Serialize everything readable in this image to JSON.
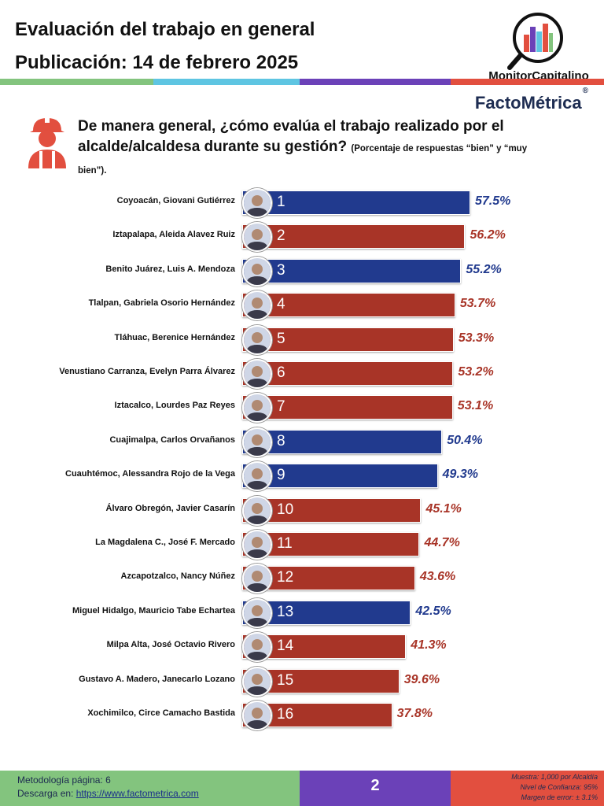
{
  "header": {
    "title": "Evaluación del trabajo en general",
    "subtitle": "Publicación: 14 de febrero 2025"
  },
  "brand": {
    "monitor_name": "MonitorCapitalino",
    "facto_name": "FactoMétrica",
    "facto_mark": "®"
  },
  "question": {
    "text": "De manera general, ¿cómo evalúa el trabajo realizado por el alcalde/alcaldesa durante su gestión?",
    "note": "(Porcentaje de respuestas “bien” y “muy bien”)."
  },
  "colors": {
    "red": "#a83427",
    "blue": "#213a8e",
    "green": "#83c47e",
    "cyan": "#5ec5e2",
    "purple": "#6b41b8",
    "coral": "#e24f3f"
  },
  "chart_data": {
    "type": "bar",
    "orientation": "horizontal",
    "xlim": [
      0,
      65
    ],
    "categories": [
      "Coyoacán, Giovani Gutiérrez",
      "Iztapalapa, Aleida Alavez Ruiz",
      "Benito Juárez, Luis A. Mendoza",
      "Tlalpan, Gabriela Osorio Hernández",
      "Tláhuac, Berenice Hernández",
      "Venustiano Carranza, Evelyn Parra Álvarez",
      "Iztacalco, Lourdes Paz Reyes",
      "Cuajimalpa, Carlos Orvañanos",
      "Cuauhtémoc, Alessandra Rojo de la Vega",
      "Álvaro Obregón, Javier Casarín",
      "La Magdalena C., José F. Mercado",
      "Azcapotzalco, Nancy Núñez",
      "Miguel Hidalgo, Mauricio Tabe Echartea",
      "Milpa Alta, José Octavio Rivero",
      "Gustavo A. Madero, Janecarlo Lozano",
      "Xochimilco, Circe Camacho Bastida"
    ],
    "ranks": [
      "1",
      "2",
      "3",
      "4",
      "5",
      "6",
      "7",
      "8",
      "9",
      "10",
      "11",
      "12",
      "13",
      "14",
      "15",
      "16"
    ],
    "values": [
      57.5,
      56.2,
      55.2,
      53.7,
      53.3,
      53.2,
      53.1,
      50.4,
      49.3,
      45.1,
      44.7,
      43.6,
      42.5,
      41.3,
      39.6,
      37.8
    ],
    "labels": [
      "57.5%",
      "56.2%",
      "55.2%",
      "53.7%",
      "53.3%",
      "53.2%",
      "53.1%",
      "50.4%",
      "49.3%",
      "45.1%",
      "44.7%",
      "43.6%",
      "42.5%",
      "41.3%",
      "39.6%",
      "37.8%"
    ],
    "bar_colors": [
      "blue",
      "red",
      "blue",
      "red",
      "red",
      "red",
      "red",
      "blue",
      "blue",
      "red",
      "red",
      "red",
      "blue",
      "red",
      "red",
      "red"
    ]
  },
  "footer": {
    "methodology": "Metodología página: 6",
    "download_label": "Descarga en: ",
    "download_link": "https://www.factometrica.com",
    "page_number": "2",
    "sample": "Muestra:  1,000 por Alcaldía",
    "confidence": "Nivel de Confianza: 95%",
    "error": "Margen de error: ± 3.1%"
  }
}
